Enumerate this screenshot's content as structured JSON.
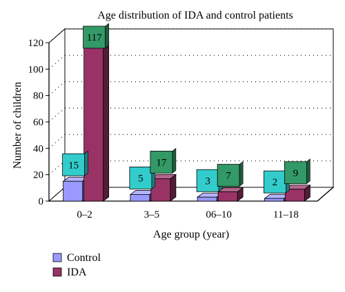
{
  "chart_data": {
    "type": "bar",
    "style": "3d-clustered",
    "title": "Age distribution of IDA and control patients",
    "xlabel": "Age group (year)",
    "ylabel": "Number of children",
    "categories": [
      "0–2",
      "3–5",
      "06–10",
      "11–18"
    ],
    "ylim": [
      0,
      120
    ],
    "yticks": [
      0,
      20,
      40,
      60,
      80,
      100,
      120
    ],
    "grid": "dotted horizontal on back wall",
    "legend": "bottom-left",
    "series": [
      {
        "name": "Control",
        "values": [
          15,
          5,
          3,
          2
        ],
        "color": "#9999ff",
        "label_box_color": "#33cccc"
      },
      {
        "name": "IDA",
        "values": [
          117,
          17,
          7,
          9
        ],
        "color": "#993366",
        "label_box_color": "#339966"
      }
    ]
  }
}
